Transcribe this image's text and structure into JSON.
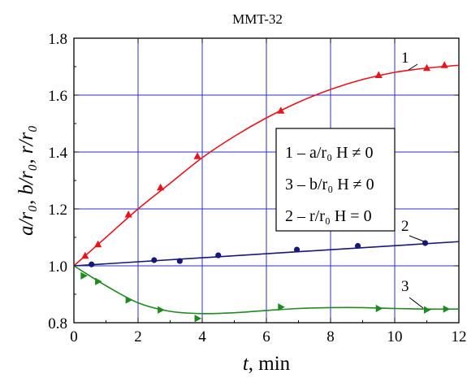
{
  "chart_data": {
    "type": "scatter",
    "title": "MMT-32",
    "xlabel_italic": "t",
    "xlabel_rest": ", min",
    "ylabel": "a/r₀, b/r₀, r/r₀",
    "xlim": [
      0,
      12
    ],
    "ylim": [
      0.8,
      1.8
    ],
    "x_ticks": [
      0,
      2,
      4,
      6,
      8,
      10,
      12
    ],
    "y_ticks": [
      0.8,
      1.0,
      1.2,
      1.4,
      1.6,
      1.8
    ],
    "grid": true,
    "legend_position": "center-right",
    "series": [
      {
        "id": "1",
        "curve_label": "1",
        "legend": "1 – a/r₀  H ≠ 0",
        "color": "#e8141b",
        "marker": "triangle-up",
        "points": [
          [
            0.35,
            1.035
          ],
          [
            0.75,
            1.075
          ],
          [
            1.7,
            1.18
          ],
          [
            2.7,
            1.275
          ],
          [
            3.85,
            1.385
          ],
          [
            6.45,
            1.545
          ],
          [
            9.5,
            1.67
          ],
          [
            11.0,
            1.695
          ],
          [
            11.55,
            1.705
          ]
        ],
        "fit": [
          [
            0,
            1.0
          ],
          [
            1,
            1.1
          ],
          [
            2,
            1.2
          ],
          [
            3,
            1.29
          ],
          [
            4,
            1.38
          ],
          [
            5,
            1.455
          ],
          [
            6,
            1.52
          ],
          [
            7,
            1.575
          ],
          [
            8,
            1.62
          ],
          [
            9,
            1.655
          ],
          [
            10,
            1.68
          ],
          [
            11,
            1.695
          ],
          [
            12,
            1.705
          ]
        ]
      },
      {
        "id": "3",
        "curve_label": "3",
        "legend": "3 – b/r₀  H ≠ 0",
        "color": "#1f8a1f",
        "marker": "triangle-right",
        "points": [
          [
            0.3,
            0.965
          ],
          [
            0.75,
            0.945
          ],
          [
            1.7,
            0.88
          ],
          [
            2.7,
            0.845
          ],
          [
            3.85,
            0.815
          ],
          [
            6.45,
            0.855
          ],
          [
            9.5,
            0.85
          ],
          [
            11.0,
            0.845
          ],
          [
            11.6,
            0.848
          ]
        ],
        "fit": [
          [
            0,
            1.0
          ],
          [
            1,
            0.93
          ],
          [
            2,
            0.87
          ],
          [
            3,
            0.84
          ],
          [
            4,
            0.832
          ],
          [
            5,
            0.835
          ],
          [
            6,
            0.843
          ],
          [
            7,
            0.85
          ],
          [
            8,
            0.853
          ],
          [
            9,
            0.853
          ],
          [
            10,
            0.85
          ],
          [
            11,
            0.848
          ],
          [
            12,
            0.848
          ]
        ]
      },
      {
        "id": "2",
        "curve_label": "2",
        "legend": "2 – r/r₀  H = 0",
        "color": "#17177a",
        "marker": "circle",
        "points": [
          [
            0.55,
            1.005
          ],
          [
            2.5,
            1.02
          ],
          [
            3.3,
            1.017
          ],
          [
            4.5,
            1.037
          ],
          [
            6.95,
            1.057
          ],
          [
            8.85,
            1.07
          ],
          [
            10.95,
            1.08
          ]
        ],
        "fit": [
          [
            0,
            1.0
          ],
          [
            12,
            1.085
          ]
        ]
      }
    ]
  }
}
